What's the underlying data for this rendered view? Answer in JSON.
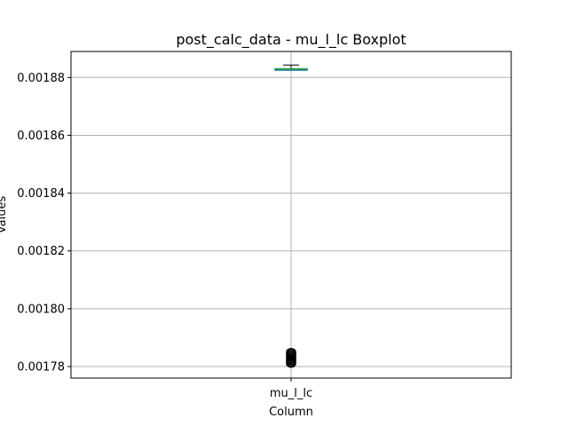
{
  "chart_data": {
    "type": "boxplot",
    "title": "post_calc_data - mu_l_lc Boxplot",
    "xlabel": "Column",
    "ylabel": "Values",
    "categories": [
      "mu_l_lc"
    ],
    "ylim": [
      0.001776,
      0.001889
    ],
    "yticks": [
      0.00178,
      0.0018,
      0.00182,
      0.00184,
      0.00186,
      0.00188
    ],
    "ytick_labels": [
      "0.00178",
      "0.00180",
      "0.00182",
      "0.00184",
      "0.00186",
      "0.00188"
    ],
    "grid": true,
    "boxes": [
      {
        "name": "mu_l_lc",
        "whisker_low": 0.0018827,
        "q1": 0.0018828,
        "median": 0.0018829,
        "q3": 0.001883,
        "whisker_high": 0.0018843,
        "outliers": [
          0.001781,
          0.0017815,
          0.001782,
          0.0017825,
          0.001783,
          0.0017835,
          0.001784,
          0.0017845,
          0.001785
        ]
      }
    ],
    "colors": {
      "box": "#1f77b4",
      "median": "#2ca02c",
      "whisker": "#000000",
      "outlier": "#000000",
      "grid": "#b0b0b0"
    }
  }
}
